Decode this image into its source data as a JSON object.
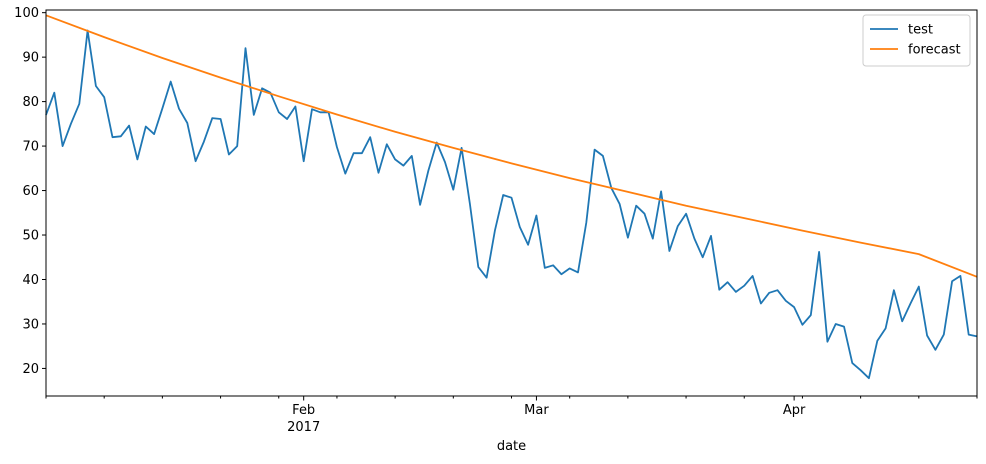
{
  "chart_data": {
    "type": "line",
    "title": "",
    "xlabel": "date",
    "ylabel": "",
    "x_range": [
      "2017-01-01",
      "2017-04-23"
    ],
    "ylim": [
      13.8,
      100.6
    ],
    "grid": false,
    "legend_position": "top-right",
    "y_ticks": [
      20,
      30,
      40,
      50,
      60,
      70,
      80,
      90,
      100
    ],
    "x_major_ticks": [
      {
        "date": "2017-02-01",
        "label": "Feb",
        "sublabel": "2017"
      },
      {
        "date": "2017-03-01",
        "label": "Mar",
        "sublabel": ""
      },
      {
        "date": "2017-04-01",
        "label": "Apr",
        "sublabel": ""
      }
    ],
    "x_minor_ticks": [
      "2017-01-01",
      "2017-01-08",
      "2017-01-15",
      "2017-01-22",
      "2017-01-29",
      "2017-02-05",
      "2017-02-12",
      "2017-02-19",
      "2017-02-26",
      "2017-03-05",
      "2017-03-12",
      "2017-03-19",
      "2017-03-26",
      "2017-04-02",
      "2017-04-09",
      "2017-04-16",
      "2017-04-23"
    ],
    "series": [
      {
        "name": "test",
        "color": "#1f77b4",
        "points": [
          [
            "2017-01-01",
            77
          ],
          [
            "2017-01-02",
            82
          ],
          [
            "2017-01-03",
            70
          ],
          [
            "2017-01-04",
            75
          ],
          [
            "2017-01-05",
            79.5
          ],
          [
            "2017-01-06",
            96
          ],
          [
            "2017-01-07",
            83.5
          ],
          [
            "2017-01-08",
            81
          ],
          [
            "2017-01-09",
            72
          ],
          [
            "2017-01-10",
            72.2
          ],
          [
            "2017-01-11",
            74.6
          ],
          [
            "2017-01-12",
            67
          ],
          [
            "2017-01-13",
            74.4
          ],
          [
            "2017-01-14",
            72.7
          ],
          [
            "2017-01-15",
            78.5
          ],
          [
            "2017-01-16",
            84.5
          ],
          [
            "2017-01-17",
            78.4
          ],
          [
            "2017-01-18",
            75.2
          ],
          [
            "2017-01-19",
            66.6
          ],
          [
            "2017-01-20",
            71
          ],
          [
            "2017-01-21",
            76.3
          ],
          [
            "2017-01-22",
            76.1
          ],
          [
            "2017-01-23",
            68.1
          ],
          [
            "2017-01-24",
            70
          ],
          [
            "2017-01-25",
            92
          ],
          [
            "2017-01-26",
            77
          ],
          [
            "2017-01-27",
            83
          ],
          [
            "2017-01-28",
            82
          ],
          [
            "2017-01-29",
            77.6
          ],
          [
            "2017-01-30",
            76.1
          ],
          [
            "2017-01-31",
            78.9
          ],
          [
            "2017-02-01",
            66.6
          ],
          [
            "2017-02-02",
            78.3
          ],
          [
            "2017-02-03",
            77.6
          ],
          [
            "2017-02-04",
            77.6
          ],
          [
            "2017-02-05",
            69.8
          ],
          [
            "2017-02-06",
            63.8
          ],
          [
            "2017-02-07",
            68.4
          ],
          [
            "2017-02-08",
            68.4
          ],
          [
            "2017-02-09",
            72
          ],
          [
            "2017-02-10",
            64
          ],
          [
            "2017-02-11",
            70.4
          ],
          [
            "2017-02-12",
            67
          ],
          [
            "2017-02-13",
            65.6
          ],
          [
            "2017-02-14",
            67.8
          ],
          [
            "2017-02-15",
            56.8
          ],
          [
            "2017-02-16",
            64.5
          ],
          [
            "2017-02-17",
            70.8
          ],
          [
            "2017-02-18",
            66.4
          ],
          [
            "2017-02-19",
            60.2
          ],
          [
            "2017-02-20",
            69.6
          ],
          [
            "2017-02-21",
            57
          ],
          [
            "2017-02-22",
            42.8
          ],
          [
            "2017-02-23",
            40.4
          ],
          [
            "2017-02-24",
            51
          ],
          [
            "2017-02-25",
            59
          ],
          [
            "2017-02-26",
            58.4
          ],
          [
            "2017-02-27",
            51.8
          ],
          [
            "2017-02-28",
            47.8
          ],
          [
            "2017-03-01",
            54.4
          ],
          [
            "2017-03-02",
            42.6
          ],
          [
            "2017-03-03",
            43.2
          ],
          [
            "2017-03-04",
            41.2
          ],
          [
            "2017-03-05",
            42.5
          ],
          [
            "2017-03-06",
            41.6
          ],
          [
            "2017-03-07",
            52.8
          ],
          [
            "2017-03-08",
            69.2
          ],
          [
            "2017-03-09",
            67.8
          ],
          [
            "2017-03-10",
            60.6
          ],
          [
            "2017-03-11",
            57
          ],
          [
            "2017-03-12",
            49.4
          ],
          [
            "2017-03-13",
            56.6
          ],
          [
            "2017-03-14",
            54.8
          ],
          [
            "2017-03-15",
            49.2
          ],
          [
            "2017-03-16",
            59.8
          ],
          [
            "2017-03-17",
            46.4
          ],
          [
            "2017-03-18",
            52
          ],
          [
            "2017-03-19",
            54.8
          ],
          [
            "2017-03-20",
            49.2
          ],
          [
            "2017-03-21",
            45
          ],
          [
            "2017-03-22",
            49.8
          ],
          [
            "2017-03-23",
            37.7
          ],
          [
            "2017-03-24",
            39.4
          ],
          [
            "2017-03-25",
            37.2
          ],
          [
            "2017-03-26",
            38.6
          ],
          [
            "2017-03-27",
            40.8
          ],
          [
            "2017-03-28",
            34.6
          ],
          [
            "2017-03-29",
            37
          ],
          [
            "2017-03-30",
            37.6
          ],
          [
            "2017-03-31",
            35.2
          ],
          [
            "2017-04-01",
            33.8
          ],
          [
            "2017-04-02",
            29.8
          ],
          [
            "2017-04-03",
            32
          ],
          [
            "2017-04-04",
            46.2
          ],
          [
            "2017-04-05",
            26
          ],
          [
            "2017-04-06",
            30
          ],
          [
            "2017-04-07",
            29.4
          ],
          [
            "2017-04-08",
            21.2
          ],
          [
            "2017-04-09",
            19.6
          ],
          [
            "2017-04-10",
            17.8
          ],
          [
            "2017-04-11",
            26.2
          ],
          [
            "2017-04-12",
            29
          ],
          [
            "2017-04-13",
            37.6
          ],
          [
            "2017-04-14",
            30.6
          ],
          [
            "2017-04-15",
            34.6
          ],
          [
            "2017-04-16",
            38.4
          ],
          [
            "2017-04-17",
            27.4
          ],
          [
            "2017-04-18",
            24.2
          ],
          [
            "2017-04-19",
            27.6
          ],
          [
            "2017-04-20",
            39.6
          ],
          [
            "2017-04-21",
            40.8
          ],
          [
            "2017-04-22",
            27.6
          ],
          [
            "2017-04-23",
            27.2
          ]
        ]
      },
      {
        "name": "forecast",
        "color": "#ff7f0e",
        "points": [
          [
            "2017-01-01",
            99.4
          ],
          [
            "2017-01-08",
            94.5
          ],
          [
            "2017-01-15",
            89.8
          ],
          [
            "2017-01-22",
            85.4
          ],
          [
            "2017-01-29",
            81.2
          ],
          [
            "2017-02-05",
            77.1
          ],
          [
            "2017-02-12",
            73.2
          ],
          [
            "2017-02-19",
            69.6
          ],
          [
            "2017-02-26",
            66.1
          ],
          [
            "2017-03-05",
            62.8
          ],
          [
            "2017-03-12",
            59.7
          ],
          [
            "2017-03-19",
            56.6
          ],
          [
            "2017-03-26",
            53.8
          ],
          [
            "2017-04-02",
            51.0
          ],
          [
            "2017-04-09",
            48.3
          ],
          [
            "2017-04-16",
            45.7
          ],
          [
            "2017-04-23",
            40.6
          ]
        ]
      }
    ]
  }
}
